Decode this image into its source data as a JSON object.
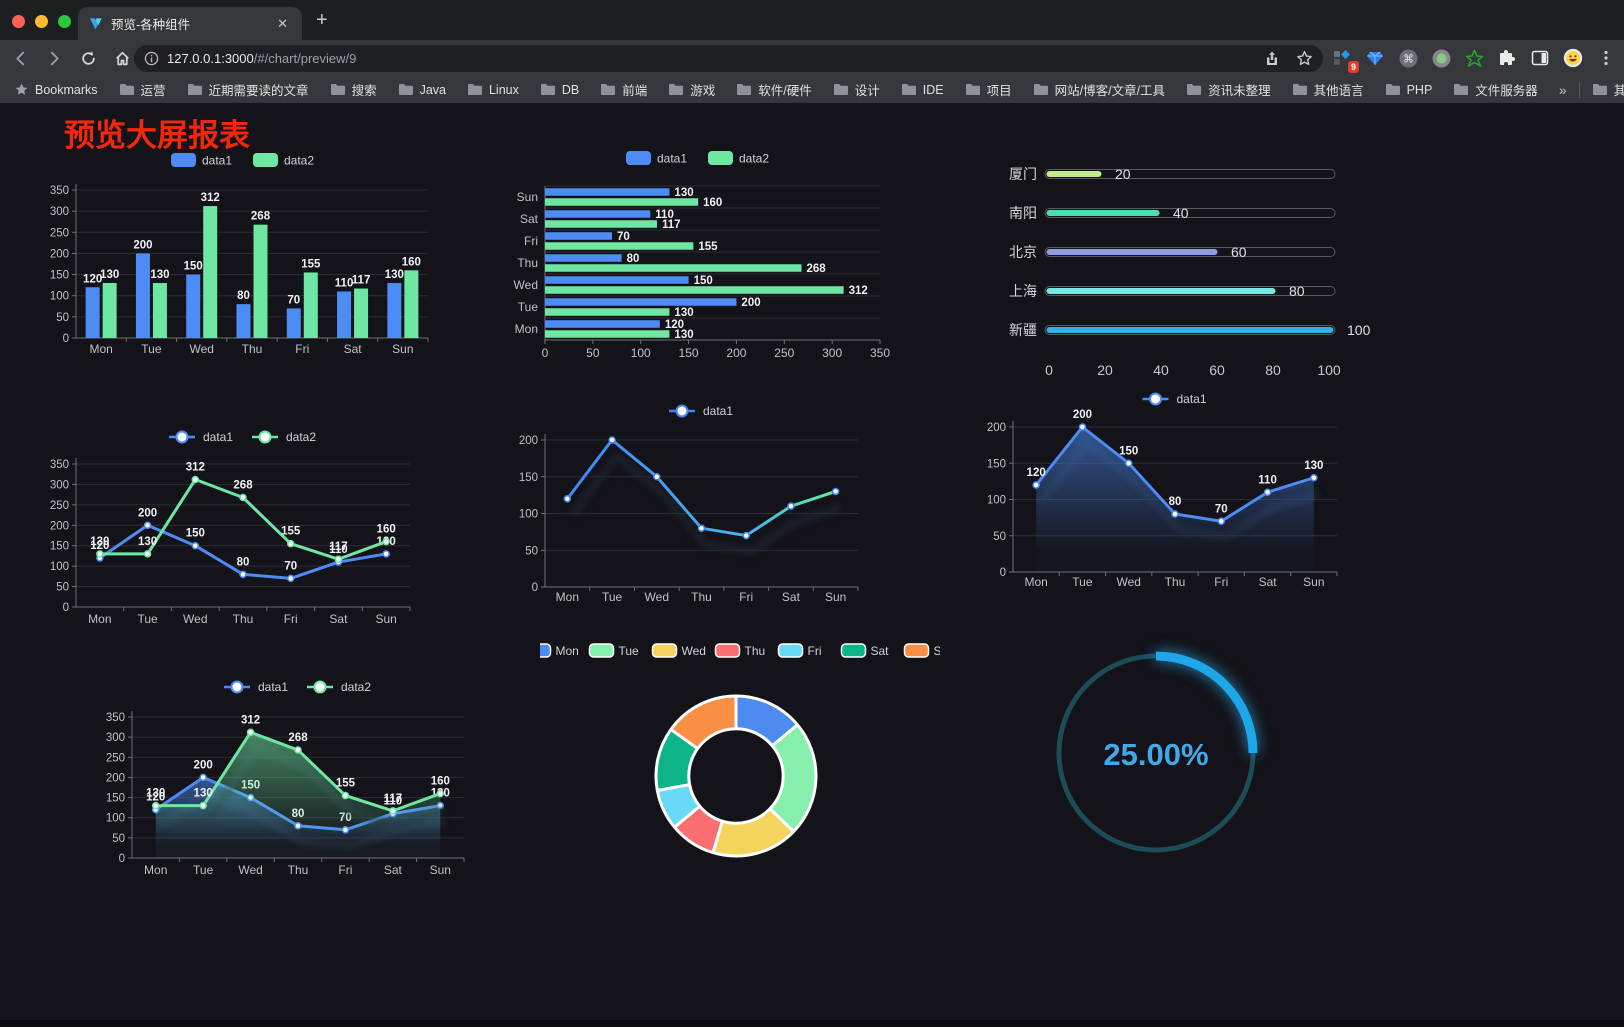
{
  "browser": {
    "tab_title": "预览-各种组件",
    "url_host": "127.0.0.1:3000",
    "url_path": "/#/chart/preview/9",
    "extension_badge": "9",
    "traffic_lights": {
      "close": "#ff5f57",
      "minimize": "#febc2e",
      "zoom": "#28c840"
    },
    "bookmarks_label": "Bookmarks",
    "bookmarks": [
      "运营",
      "近期需要读的文章",
      "搜索",
      "Java",
      "Linux",
      "DB",
      "前端",
      "游戏",
      "软件/硬件",
      "设计",
      "IDE",
      "项目",
      "网站/博客/文章/工具",
      "资讯未整理",
      "其他语言",
      "PHP",
      "文件服务器"
    ],
    "bookmarks_overflow": "»",
    "other_bookmarks": "其他书签"
  },
  "page": {
    "title": "预览大屏报表",
    "title_color": "#f4270c",
    "background": "#131319"
  },
  "chart_data": [
    {
      "dom": "c1",
      "type": "bar",
      "title": "",
      "categories": [
        "Mon",
        "Tue",
        "Wed",
        "Thu",
        "Fri",
        "Sat",
        "Sun"
      ],
      "series": [
        {
          "name": "data1",
          "color": "#4e8cf5",
          "values": [
            120,
            200,
            150,
            80,
            70,
            110,
            130
          ]
        },
        {
          "name": "data2",
          "color": "#6ee7a3",
          "values": [
            130,
            130,
            312,
            268,
            155,
            117,
            160
          ]
        }
      ],
      "ylim": [
        0,
        350
      ],
      "ytick": 50,
      "grid": true,
      "legend_position": "top",
      "show_labels": true
    },
    {
      "dom": "c2",
      "type": "bar-horizontal",
      "title": "",
      "categories": [
        "Mon",
        "Tue",
        "Wed",
        "Thu",
        "Fri",
        "Sat",
        "Sun"
      ],
      "y_order": "reversed-display",
      "series": [
        {
          "name": "data1",
          "color": "#4e8cf5",
          "values": [
            120,
            200,
            150,
            80,
            70,
            110,
            130
          ]
        },
        {
          "name": "data2",
          "color": "#6ee7a3",
          "values": [
            130,
            130,
            312,
            268,
            155,
            117,
            160
          ]
        }
      ],
      "xlim": [
        0,
        350
      ],
      "xtick": 50,
      "grid": true,
      "legend_position": "top",
      "show_labels": true
    },
    {
      "dom": "c3",
      "type": "progress-bars",
      "title": "",
      "items": [
        {
          "label": "厦门",
          "value": 20,
          "color": "#c3e88d"
        },
        {
          "label": "南阳",
          "value": 40,
          "color": "#49e0ae"
        },
        {
          "label": "北京",
          "value": 60,
          "color": "#8f9ce0"
        },
        {
          "label": "上海",
          "value": 80,
          "color": "#7ce6e0"
        },
        {
          "label": "新疆",
          "value": 100,
          "color": "#35b2e5"
        }
      ],
      "xlim": [
        0,
        100
      ],
      "xticks": [
        0,
        20,
        40,
        60,
        80,
        100
      ]
    },
    {
      "dom": "c4",
      "type": "line",
      "title": "",
      "categories": [
        "Mon",
        "Tue",
        "Wed",
        "Thu",
        "Fri",
        "Sat",
        "Sun"
      ],
      "series": [
        {
          "name": "data1",
          "color": "#4e8cf5",
          "values": [
            120,
            200,
            150,
            80,
            70,
            110,
            130
          ]
        },
        {
          "name": "data2",
          "color": "#6ee7a3",
          "values": [
            130,
            130,
            312,
            268,
            155,
            117,
            160
          ]
        }
      ],
      "ylim": [
        0,
        350
      ],
      "ytick": 50,
      "grid": true,
      "legend_position": "top",
      "show_labels": true,
      "area": false
    },
    {
      "dom": "c5",
      "type": "line",
      "title": "",
      "categories": [
        "Mon",
        "Tue",
        "Wed",
        "Thu",
        "Fri",
        "Sat",
        "Sun"
      ],
      "series": [
        {
          "name": "data1",
          "color": "#4e8cf5",
          "gradient_stroke": [
            "#3f85f8",
            "#49b7e8",
            "#66eda0"
          ],
          "values": [
            120,
            200,
            150,
            80,
            70,
            110,
            130
          ]
        }
      ],
      "ylim": [
        0,
        200
      ],
      "ytick": 50,
      "grid": true,
      "legend_position": "top",
      "show_labels": false,
      "area": false,
      "shadow": true
    },
    {
      "dom": "c6",
      "type": "line",
      "title": "",
      "categories": [
        "Mon",
        "Tue",
        "Wed",
        "Thu",
        "Fri",
        "Sat",
        "Sun"
      ],
      "series": [
        {
          "name": "data1",
          "color": "#4e8cf5",
          "values": [
            120,
            200,
            150,
            80,
            70,
            110,
            130
          ]
        }
      ],
      "ylim": [
        0,
        200
      ],
      "ytick": 50,
      "grid": true,
      "legend_position": "top",
      "show_labels": true,
      "area": true,
      "shadow": true
    },
    {
      "dom": "c7",
      "type": "line",
      "title": "",
      "categories": [
        "Mon",
        "Tue",
        "Wed",
        "Thu",
        "Fri",
        "Sat",
        "Sun"
      ],
      "series": [
        {
          "name": "data1",
          "color": "#4e8cf5",
          "values": [
            120,
            200,
            150,
            80,
            70,
            110,
            130
          ]
        },
        {
          "name": "data2",
          "color": "#6ee7a3",
          "values": [
            130,
            130,
            312,
            268,
            155,
            117,
            160
          ]
        }
      ],
      "ylim": [
        0,
        350
      ],
      "ytick": 50,
      "grid": true,
      "legend_position": "top",
      "show_labels": true,
      "area": true,
      "shadow": true
    },
    {
      "dom": "c8",
      "type": "pie",
      "title": "",
      "categories": [
        "Mon",
        "Tue",
        "Wed",
        "Thu",
        "Fri",
        "Sat",
        "Sun"
      ],
      "values": [
        120,
        200,
        150,
        80,
        70,
        110,
        130
      ],
      "colors": [
        "#4e8bf0",
        "#86efac",
        "#f5d45e",
        "#fb6e72",
        "#67d9f7",
        "#0cb487",
        "#f98f45"
      ],
      "inner_radius_ratio": 0.59,
      "legend_position": "top"
    },
    {
      "dom": "c9",
      "type": "gauge",
      "title": "",
      "percent": 25,
      "value_label": "25.00%",
      "progress_color": "#1ea7e8",
      "track_color": "#1d4b58",
      "text_color": "#41a9ea"
    }
  ]
}
